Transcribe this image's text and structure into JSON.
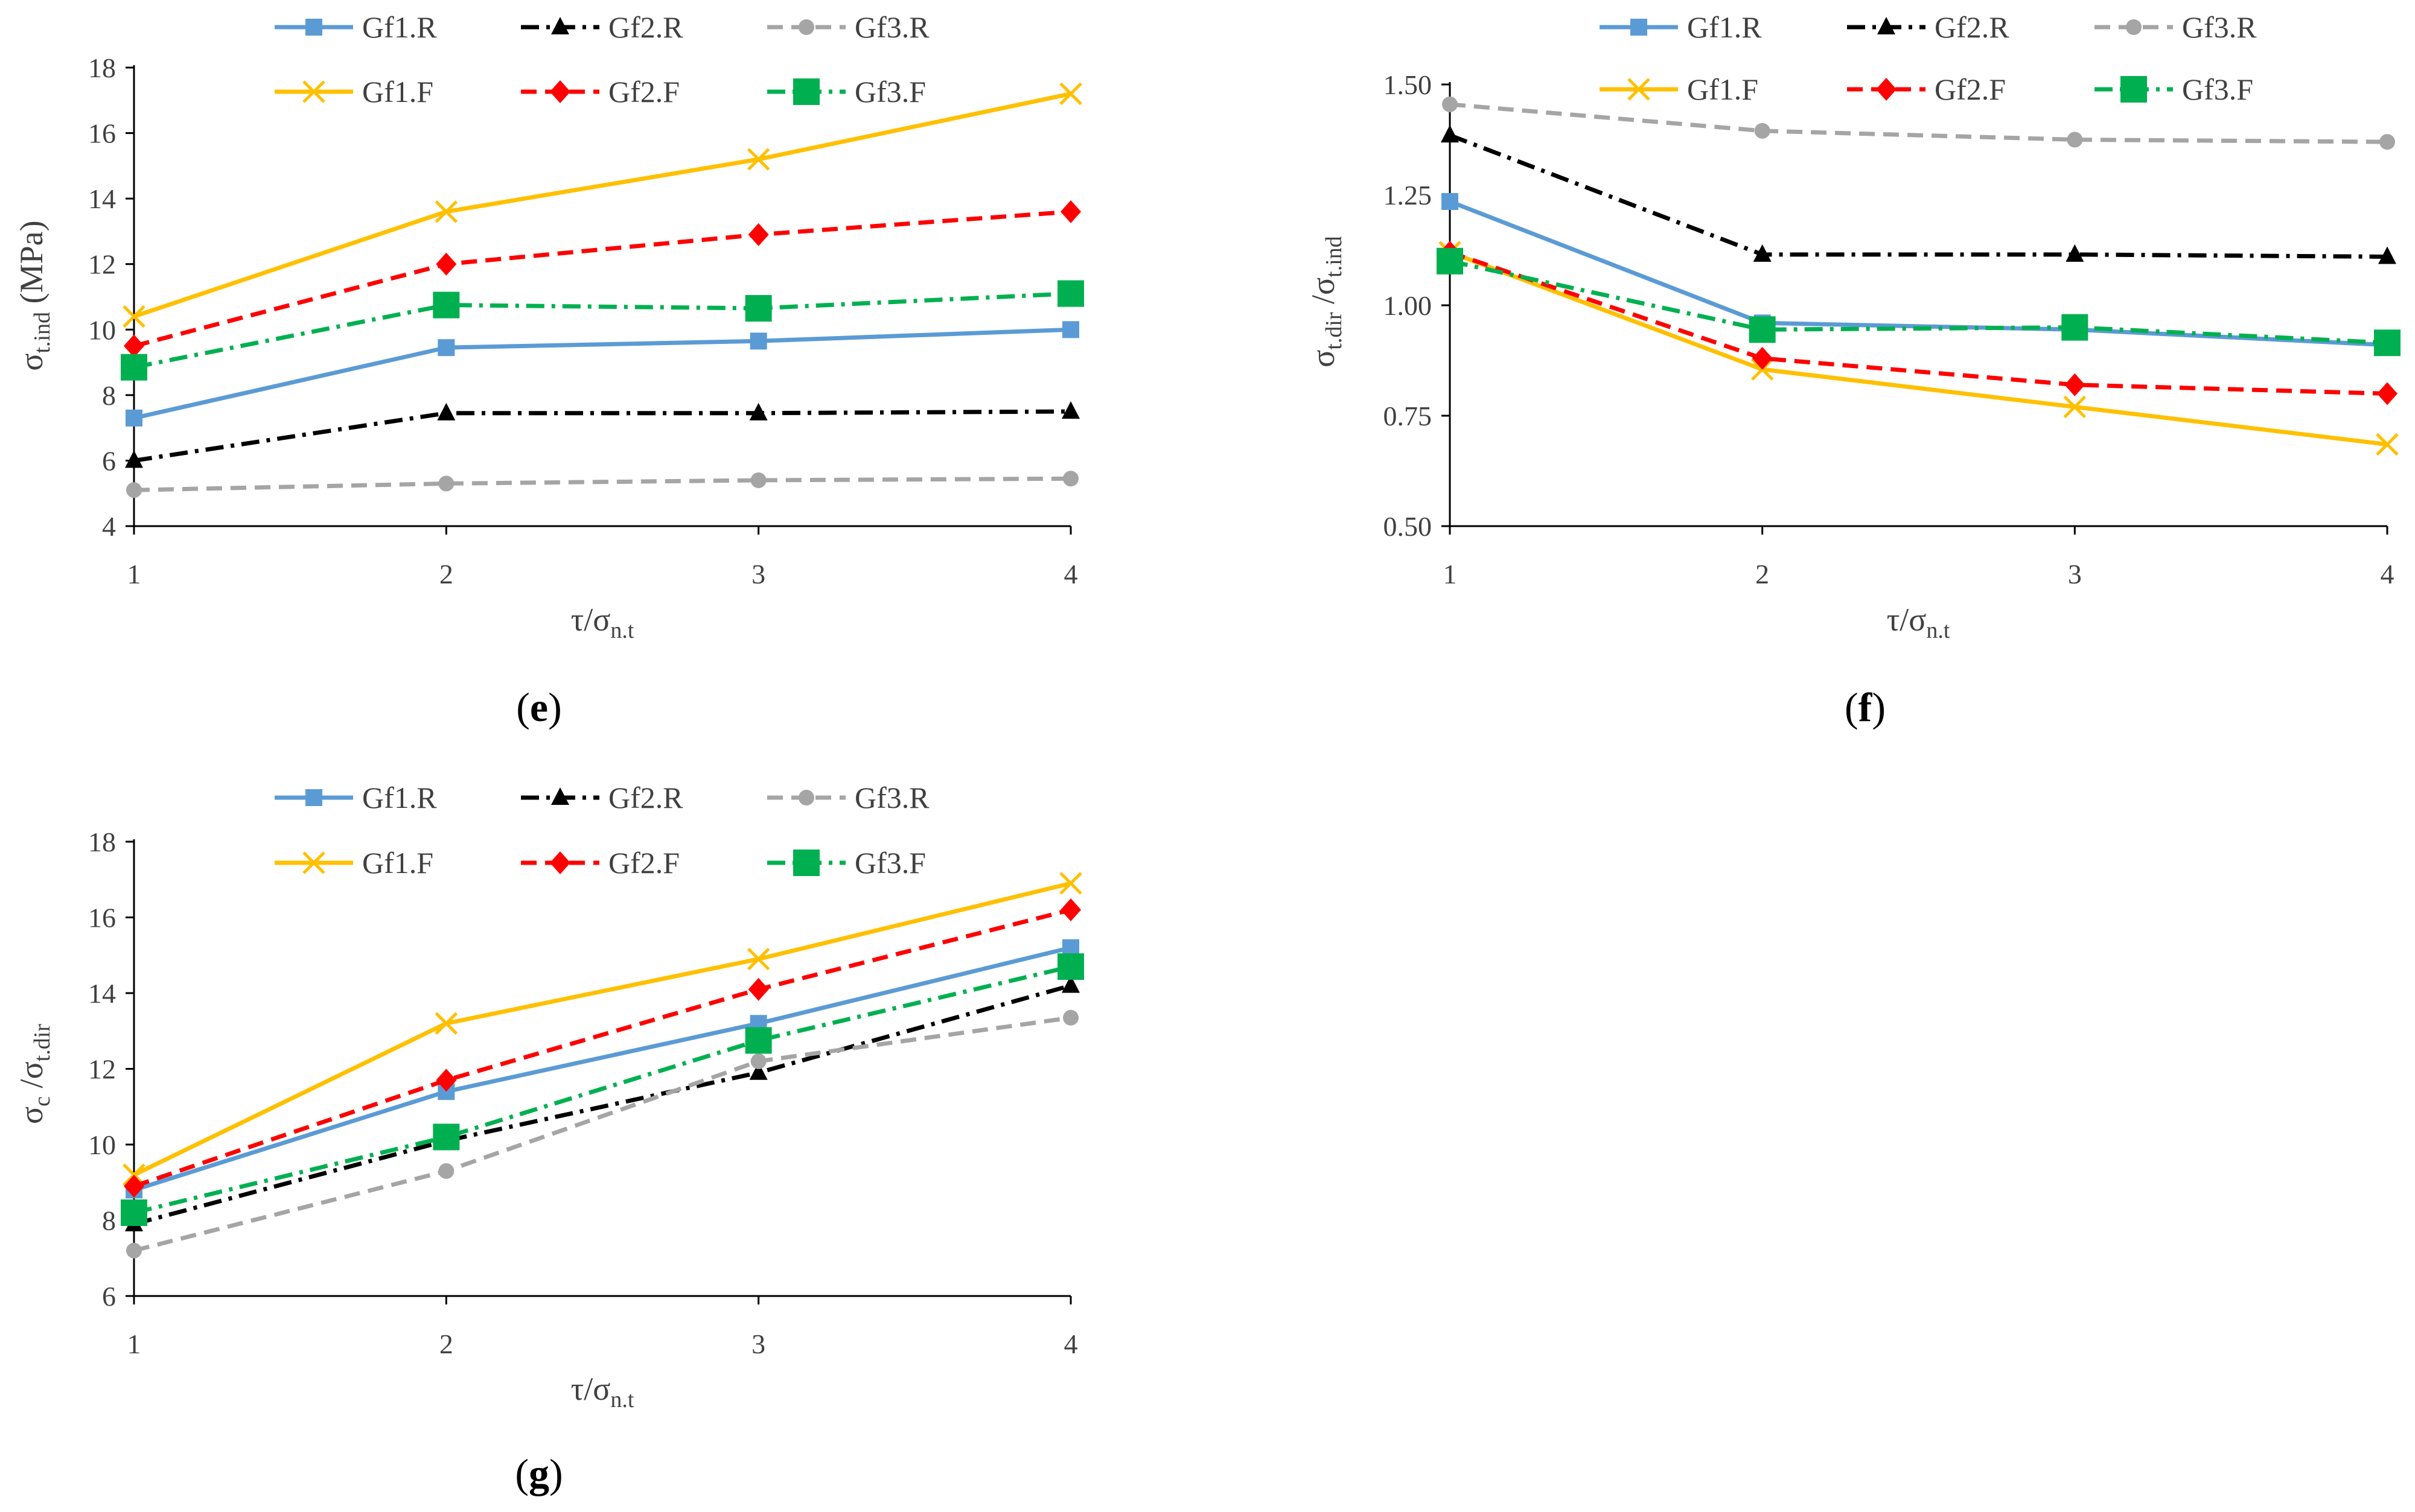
{
  "figure": {
    "series_styles": {
      "Gf1.R": {
        "color": "#5b9bd5",
        "dash": "none",
        "marker": "square"
      },
      "Gf2.R": {
        "color": "#000000",
        "dash": "dashdot",
        "marker": "triangle"
      },
      "Gf3.R": {
        "color": "#a5a5a5",
        "dash": "dash",
        "marker": "circle"
      },
      "Gf1.F": {
        "color": "#ffc000",
        "dash": "none",
        "marker": "cross"
      },
      "Gf2.F": {
        "color": "#ff0000",
        "dash": "dash",
        "marker": "diamond"
      },
      "Gf3.F": {
        "color": "#00b050",
        "dash": "dashdot",
        "marker": "bigsquare"
      }
    }
  },
  "chart_data": [
    {
      "panel": "e",
      "type": "line",
      "label_open": "(",
      "label_letter": "e",
      "label_close": ")",
      "x": [
        1,
        2,
        3,
        4
      ],
      "xticks": [
        "1",
        "2",
        "3",
        "4"
      ],
      "xlim": [
        1,
        4
      ],
      "ylim": [
        4,
        18
      ],
      "yticks": [
        "4",
        "6",
        "8",
        "10",
        "12",
        "14",
        "16",
        "18"
      ],
      "ytick_values": [
        4,
        6,
        8,
        10,
        12,
        14,
        16,
        18
      ],
      "xlabel": {
        "main": "τ/σ",
        "sub": "n.t"
      },
      "ylabel": {
        "main": "σ",
        "sub": "t.ind",
        "suffix": " (MPa)"
      },
      "series": [
        {
          "name": "Gf1.R",
          "values": [
            7.3,
            9.45,
            9.65,
            10.0
          ]
        },
        {
          "name": "Gf2.R",
          "values": [
            6.0,
            7.45,
            7.45,
            7.5
          ]
        },
        {
          "name": "Gf3.R",
          "values": [
            5.1,
            5.3,
            5.4,
            5.45
          ]
        },
        {
          "name": "Gf1.F",
          "values": [
            10.4,
            13.6,
            15.2,
            17.2
          ]
        },
        {
          "name": "Gf2.F",
          "values": [
            9.5,
            12.0,
            12.9,
            13.6
          ]
        },
        {
          "name": "Gf3.F",
          "values": [
            8.85,
            10.75,
            10.65,
            11.1
          ]
        }
      ]
    },
    {
      "panel": "f",
      "type": "line",
      "label_open": "(",
      "label_letter": "f",
      "label_close": ")",
      "x": [
        1,
        2,
        3,
        4
      ],
      "xticks": [
        "1",
        "2",
        "3",
        "4"
      ],
      "xlim": [
        1,
        4
      ],
      "ylim": [
        0.5,
        1.5
      ],
      "yticks": [
        "0.50",
        "0.75",
        "1.00",
        "1.25",
        "1.50"
      ],
      "ytick_values": [
        0.5,
        0.75,
        1.0,
        1.25,
        1.5
      ],
      "xlabel": {
        "main": "τ/σ",
        "sub": "n.t"
      },
      "ylabel": {
        "main": "σ",
        "sub": "t.dir",
        "mid": " /σ",
        "sub2": "t.ind"
      },
      "series": [
        {
          "name": "Gf1.R",
          "values": [
            1.235,
            0.96,
            0.945,
            0.91
          ]
        },
        {
          "name": "Gf2.R",
          "values": [
            1.385,
            1.115,
            1.115,
            1.11
          ]
        },
        {
          "name": "Gf3.R",
          "values": [
            1.455,
            1.395,
            1.375,
            1.37
          ]
        },
        {
          "name": "Gf1.F",
          "values": [
            1.12,
            0.855,
            0.77,
            0.685
          ]
        },
        {
          "name": "Gf2.F",
          "values": [
            1.12,
            0.88,
            0.82,
            0.8
          ]
        },
        {
          "name": "Gf3.F",
          "values": [
            1.1,
            0.945,
            0.95,
            0.915
          ]
        }
      ]
    },
    {
      "panel": "g",
      "type": "line",
      "label_open": "(",
      "label_letter": "g",
      "label_close": ")",
      "x": [
        1,
        2,
        3,
        4
      ],
      "xticks": [
        "1",
        "2",
        "3",
        "4"
      ],
      "xlim": [
        1,
        4
      ],
      "ylim": [
        6,
        18
      ],
      "yticks": [
        "6",
        "8",
        "10",
        "12",
        "14",
        "16",
        "18"
      ],
      "ytick_values": [
        6,
        8,
        10,
        12,
        14,
        16,
        18
      ],
      "xlabel": {
        "main": "τ/σ",
        "sub": "n.t"
      },
      "ylabel": {
        "main": "σ",
        "sub": "c",
        "mid": " /σ",
        "sub2": "t.dir"
      },
      "series": [
        {
          "name": "Gf1.R",
          "values": [
            8.8,
            11.4,
            13.2,
            15.2
          ]
        },
        {
          "name": "Gf2.R",
          "values": [
            7.9,
            10.1,
            11.9,
            14.2
          ]
        },
        {
          "name": "Gf3.R",
          "values": [
            7.2,
            9.3,
            12.2,
            13.35
          ]
        },
        {
          "name": "Gf1.F",
          "values": [
            9.2,
            13.2,
            14.9,
            16.9
          ]
        },
        {
          "name": "Gf2.F",
          "values": [
            8.9,
            11.7,
            14.1,
            16.2
          ]
        },
        {
          "name": "Gf3.F",
          "values": [
            8.2,
            10.2,
            12.75,
            14.7
          ]
        }
      ]
    }
  ]
}
